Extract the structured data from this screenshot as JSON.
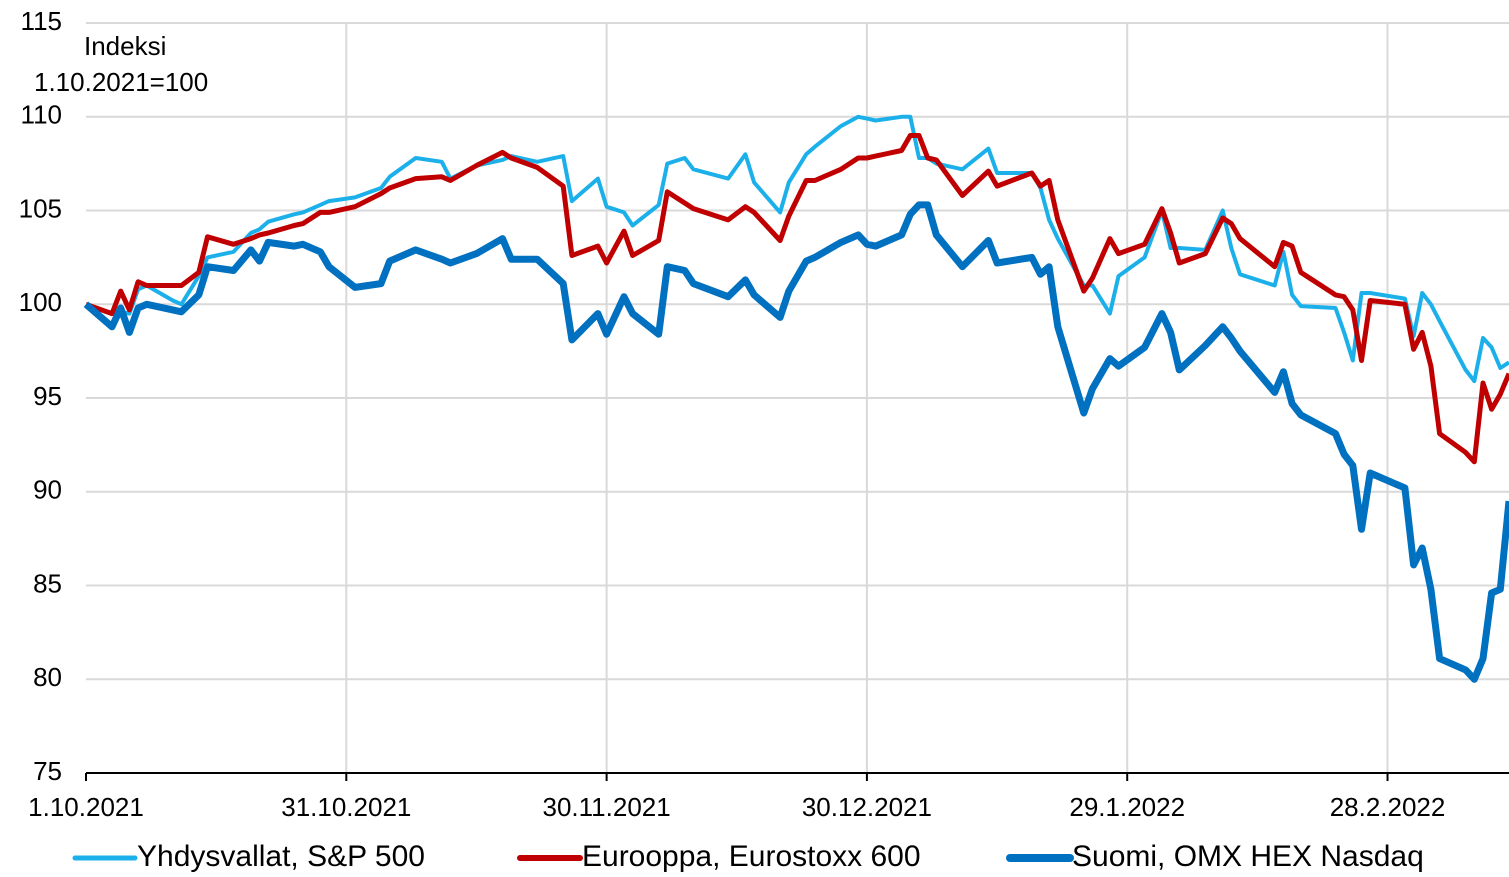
{
  "chart_data": {
    "type": "line",
    "y_label": [
      "Indeksi",
      "1.10.2021=100"
    ],
    "x": [
      "2021-10-01",
      "2021-10-04",
      "2021-10-05",
      "2021-10-06",
      "2021-10-07",
      "2021-10-08",
      "2021-10-11",
      "2021-10-12",
      "2021-10-14",
      "2021-10-15",
      "2021-10-18",
      "2021-10-20",
      "2021-10-21",
      "2021-10-22",
      "2021-10-25",
      "2021-10-26",
      "2021-10-28",
      "2021-10-29",
      "2021-11-01",
      "2021-11-04",
      "2021-11-05",
      "2021-11-08",
      "2021-11-11",
      "2021-11-12",
      "2021-11-15",
      "2021-11-18",
      "2021-11-19",
      "2021-11-22",
      "2021-11-25",
      "2021-11-26",
      "2021-11-29",
      "2021-11-30",
      "2021-12-02",
      "2021-12-03",
      "2021-12-06",
      "2021-12-07",
      "2021-12-09",
      "2021-12-10",
      "2021-12-14",
      "2021-12-16",
      "2021-12-17",
      "2021-12-20",
      "2021-12-21",
      "2021-12-23",
      "2021-12-24",
      "2021-12-27",
      "2021-12-29",
      "2021-12-30",
      "2021-12-31",
      "2022-01-03",
      "2022-01-04",
      "2022-01-05",
      "2022-01-06",
      "2022-01-07",
      "2022-01-10",
      "2022-01-13",
      "2022-01-14",
      "2022-01-18",
      "2022-01-19",
      "2022-01-20",
      "2022-01-21",
      "2022-01-24",
      "2022-01-25",
      "2022-01-27",
      "2022-01-28",
      "2022-01-31",
      "2022-02-02",
      "2022-02-03",
      "2022-02-04",
      "2022-02-07",
      "2022-02-09",
      "2022-02-10",
      "2022-02-11",
      "2022-02-15",
      "2022-02-16",
      "2022-02-17",
      "2022-02-18",
      "2022-02-22",
      "2022-02-23",
      "2022-02-24",
      "2022-02-25",
      "2022-02-26",
      "2022-03-02",
      "2022-03-03",
      "2022-03-04",
      "2022-03-05",
      "2022-03-06",
      "2022-03-09",
      "2022-03-10",
      "2022-03-11",
      "2022-03-12",
      "2022-03-13",
      "2022-03-14"
    ],
    "series": [
      {
        "name": "Yhdysvallat, S&P 500",
        "color": "#1cb0ea",
        "width": 4,
        "values": [
          100,
          98.9,
          99.6,
          99.5,
          100.8,
          101,
          100.2,
          100,
          101.5,
          102.5,
          102.8,
          103.8,
          104,
          104.4,
          104.8,
          104.9,
          105.3,
          105.5,
          105.7,
          106.2,
          106.8,
          107.8,
          107.6,
          106.7,
          107.4,
          107.7,
          107.9,
          107.6,
          107.9,
          105.5,
          106.7,
          105.2,
          104.9,
          104.2,
          105.3,
          107.5,
          107.8,
          107.2,
          106.7,
          108,
          106.5,
          104.9,
          106.5,
          108,
          108.4,
          109.5,
          110,
          109.9,
          109.8,
          110,
          110,
          107.8,
          107.8,
          107.5,
          107.2,
          108.3,
          107,
          107,
          106.2,
          104.5,
          103.5,
          101,
          101,
          99.5,
          101.5,
          102.5,
          105,
          103,
          103,
          102.9,
          105,
          103,
          101.6,
          101,
          102.8,
          100.5,
          99.9,
          99.8,
          98.5,
          97,
          100.6,
          100.6,
          100.3,
          98.3,
          100.6,
          100,
          99.1,
          96.5,
          95.9,
          98.2,
          97.7,
          96.6,
          96.9
        ]
      },
      {
        "name": "Eurooppa, Eurostoxx 600",
        "color": "#c00000",
        "width": 5,
        "values": [
          100,
          99.5,
          100.7,
          99.7,
          101.2,
          101,
          101,
          101,
          101.7,
          103.6,
          103.2,
          103.5,
          103.7,
          103.8,
          104.2,
          104.3,
          104.9,
          104.9,
          105.2,
          105.9,
          106.2,
          106.7,
          106.8,
          106.6,
          107.4,
          108.1,
          107.8,
          107.3,
          106.3,
          102.6,
          103.1,
          102.2,
          103.9,
          102.6,
          103.4,
          106,
          105.4,
          105.1,
          104.5,
          105.2,
          104.9,
          103.4,
          104.7,
          106.6,
          106.6,
          107.2,
          107.8,
          107.8,
          107.9,
          108.2,
          109,
          109,
          107.8,
          107.7,
          105.8,
          107.1,
          106.3,
          107,
          106.3,
          106.6,
          104.5,
          100.7,
          101.4,
          103.5,
          102.7,
          103.2,
          105.1,
          103.8,
          102.2,
          102.7,
          104.6,
          104.3,
          103.5,
          102,
          103.3,
          103.1,
          101.7,
          100.5,
          100.4,
          99.7,
          97,
          100.2,
          100,
          97.6,
          98.5,
          96.7,
          93.1,
          92.1,
          91.6,
          95.8,
          94.4,
          95.2,
          96.3
        ]
      },
      {
        "name": "Suomi, OMX HEX Nasdaq",
        "color": "#0070c0",
        "width": 7,
        "values": [
          100,
          98.8,
          99.8,
          98.5,
          99.8,
          100,
          99.7,
          99.6,
          100.5,
          102,
          101.8,
          102.9,
          102.3,
          103.3,
          103.1,
          103.2,
          102.8,
          102,
          100.9,
          101.1,
          102.3,
          102.9,
          102.4,
          102.2,
          102.7,
          103.5,
          102.4,
          102.4,
          101.1,
          98.1,
          99.5,
          98.4,
          100.4,
          99.5,
          98.4,
          102,
          101.8,
          101.1,
          100.4,
          101.3,
          100.5,
          99.3,
          100.7,
          102.3,
          102.5,
          103.3,
          103.7,
          103.2,
          103.1,
          103.7,
          104.8,
          105.3,
          105.3,
          103.7,
          102,
          103.4,
          102.2,
          102.5,
          101.6,
          102,
          98.8,
          94.2,
          95.5,
          97.1,
          96.7,
          97.7,
          99.5,
          98.5,
          96.5,
          97.8,
          98.8,
          98.2,
          97.5,
          95.3,
          96.4,
          94.7,
          94.1,
          93.1,
          92,
          91.4,
          88,
          91,
          90.2,
          86.1,
          87,
          84.8,
          81.1,
          80.5,
          80,
          81.1,
          84.6,
          84.8,
          89.5
        ]
      }
    ],
    "xlim": [
      "2021-10-01",
      "2022-03-14"
    ],
    "xticks": [
      {
        "value": "2021-10-01",
        "label": "1.10.2021"
      },
      {
        "value": "2021-10-31",
        "label": "31.10.2021"
      },
      {
        "value": "2021-11-30",
        "label": "30.11.2021"
      },
      {
        "value": "2021-12-30",
        "label": "30.12.2021"
      },
      {
        "value": "2022-01-29",
        "label": "29.1.2022"
      },
      {
        "value": "2022-02-28",
        "label": "28.2.2022"
      }
    ],
    "ylim": [
      75,
      115
    ],
    "yticks": [
      75,
      80,
      85,
      90,
      95,
      100,
      105,
      110,
      115
    ],
    "grid": true,
    "legend": "bottom"
  }
}
